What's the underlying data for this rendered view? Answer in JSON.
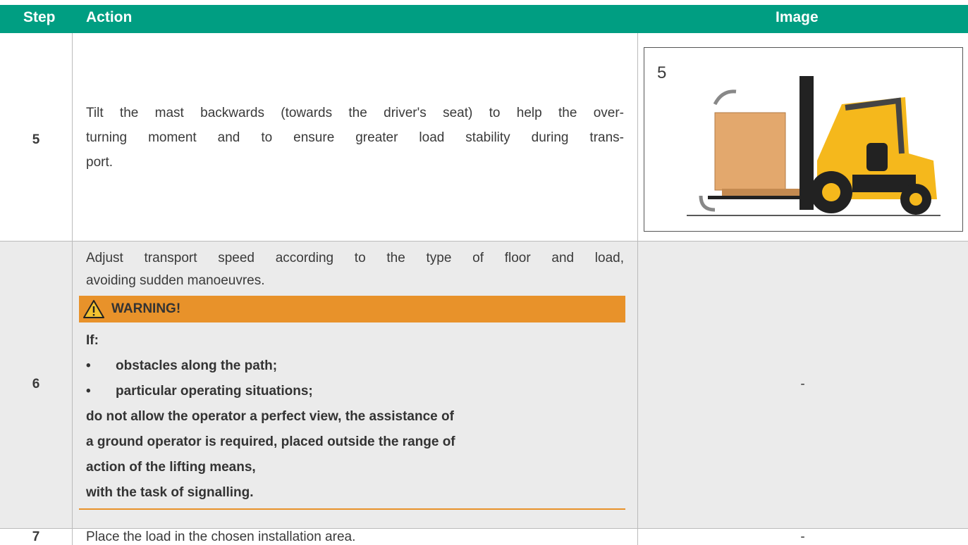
{
  "table": {
    "headers": [
      "Step",
      "Action",
      "Image"
    ],
    "rows": [
      {
        "step": "5",
        "action_lines": [
          "Tilt the mast backwards (towards the driver's seat) to help the over-",
          "turning moment and to ensure greater load stability during trans-",
          "port."
        ],
        "image_label": "5"
      },
      {
        "step": "6",
        "action_lines": [
          "Adjust transport speed according to the type of floor and load,",
          "avoiding sudden manoeuvres."
        ],
        "warning": {
          "title": "WARNING!",
          "intro": "If:",
          "items": [
            "obstacles along the path;",
            "particular operating situations;"
          ],
          "body_lines": [
            "do not allow the operator a perfect view, the assistance of",
            "a ground operator is required, placed outside the range of",
            "action of the lifting means,",
            "with the task of signalling."
          ]
        },
        "image": "-"
      },
      {
        "step": "7",
        "action_lines": [
          "Place the load in the chosen installation area."
        ],
        "image": "-"
      }
    ]
  }
}
